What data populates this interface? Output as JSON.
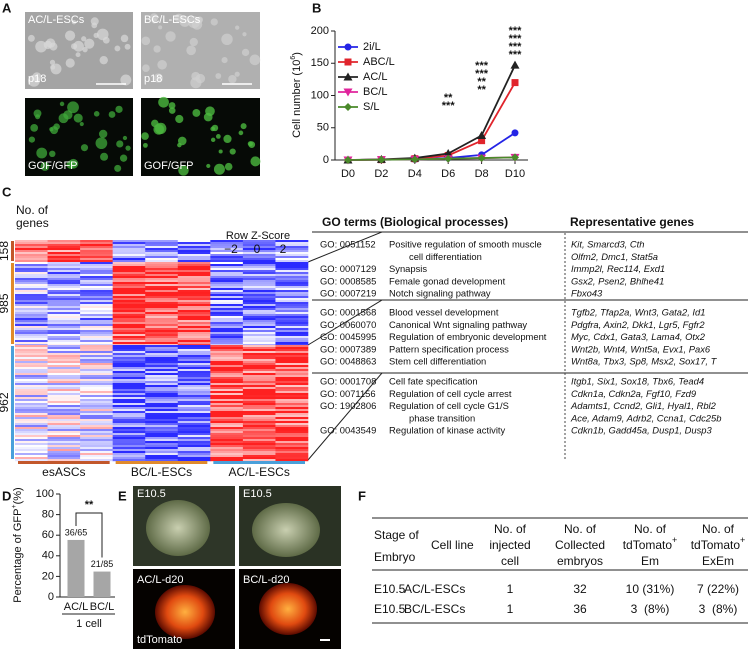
{
  "panel_labels": [
    "A",
    "B",
    "C",
    "D",
    "E",
    "F"
  ],
  "panel_a": {
    "labels": [
      "AC/L-ESCs",
      "BC/L-ESCs",
      "p18",
      "p18",
      "GOF/GFP",
      "GOF/GFP"
    ]
  },
  "chart_data": [
    {
      "type": "line",
      "ylabel": "Cell number (10",
      "ylabel_sup": "6",
      "ylabel_end": ")",
      "categories": [
        "D0",
        "D2",
        "D4",
        "D6",
        "D8",
        "D10"
      ],
      "ylim": [
        0,
        200
      ],
      "yticks": [
        0,
        50,
        100,
        150,
        200
      ],
      "series": [
        {
          "name": "2i/L",
          "color": "#2424e6",
          "marker": "circle",
          "values": [
            0,
            0.5,
            1,
            3,
            8,
            42
          ],
          "significance": [
            null,
            null,
            null,
            null,
            null,
            null
          ]
        },
        {
          "name": "ABC/L",
          "color": "#e0242c",
          "marker": "square",
          "values": [
            0,
            0.5,
            2,
            7,
            30,
            120
          ],
          "significance": [
            null,
            null,
            null,
            "**",
            "***",
            "***"
          ]
        },
        {
          "name": "AC/L",
          "color": "#222222",
          "marker": "triangle",
          "values": [
            0,
            1,
            3,
            10,
            38,
            147
          ],
          "significance": [
            null,
            null,
            null,
            "***",
            "***",
            "***"
          ]
        },
        {
          "name": "BC/L",
          "color": "#e0249c",
          "marker": "triangle-down",
          "values": [
            0,
            0.5,
            1,
            2,
            3,
            4
          ],
          "significance": [
            null,
            null,
            null,
            null,
            "**",
            "***"
          ]
        },
        {
          "name": "S/L",
          "color": "#4a8a2a",
          "marker": "diamond",
          "values": [
            0,
            0.5,
            1,
            2,
            3,
            4
          ],
          "significance": [
            null,
            null,
            null,
            null,
            "**",
            "***"
          ]
        }
      ]
    },
    {
      "type": "bar",
      "ylabel": "Percentage of GFP",
      "ylabel_sup": "+",
      "ylabel_end": "(%)",
      "categories": [
        "AC/L",
        "BC/L"
      ],
      "values": [
        55.4,
        24.7
      ],
      "value_labels": [
        "36/65",
        "21/85"
      ],
      "color": "#a6a6a6",
      "ylim": [
        0,
        100
      ],
      "yticks": [
        0,
        20,
        40,
        60,
        80,
        100
      ],
      "group_label": "1 cell",
      "significance": "**"
    }
  ],
  "panel_c": {
    "heatmap": {
      "gene_label": [
        "No. of",
        "genes"
      ],
      "clusters": [
        "158",
        "985",
        "962"
      ],
      "key_title": "Row Z-Score",
      "key_ticks": [
        "−2",
        "0",
        "2"
      ],
      "samples": [
        "esASCs",
        "BC/L-ESCs",
        "AC/L-ESCs"
      ]
    },
    "go_table": {
      "headers": [
        "GO terms (Biological processes)",
        "Representative genes"
      ],
      "groups": [
        [
          {
            "id": "GO: 0051152",
            "term": [
              "Positive regulation of smooth muscle",
              "cell differentiation"
            ],
            "genes": [
              "Kit, Smarcd3, Cth",
              "Olfm2, Dmc1, Stat5a"
            ]
          },
          {
            "id": "GO: 0007129",
            "term": [
              "Synapsis"
            ],
            "genes": [
              "Immp2l, Rec114, Exd1"
            ]
          },
          {
            "id": "GO: 0008585",
            "term": [
              "Female gonad development"
            ],
            "genes": [
              "Gsx2, Psen2, Bhlhe41"
            ]
          },
          {
            "id": "GO: 0007219",
            "term": [
              "Notch signaling pathway"
            ],
            "genes": [
              "Fbxo43"
            ]
          }
        ],
        [
          {
            "id": "GO: 0001568",
            "term": [
              "Blood vessel development"
            ],
            "genes": [
              "Tgfb2, Tfap2a, Wnt3, Gata2, Id1"
            ]
          },
          {
            "id": "GO: 0060070",
            "term": [
              "Canonical Wnt signaling pathway"
            ],
            "genes": [
              "Pdgfra, Axin2, Dkk1, Lgr5, Fgfr2"
            ]
          },
          {
            "id": "GO: 0045995",
            "term": [
              "Regulation of embryonic development"
            ],
            "genes": [
              "Myc, Cdx1, Gata3, Lama4, Otx2"
            ]
          },
          {
            "id": "GO: 0007389",
            "term": [
              "Pattern specification process"
            ],
            "genes": [
              "Wnt2b, Wnt4, Wnt5a, Evx1, Pax6"
            ]
          },
          {
            "id": "GO: 0048863",
            "term": [
              "Stem cell differentiation"
            ],
            "genes": [
              "Wnt8a, Tbx3, Sp8, Msx2, Sox17, T"
            ]
          }
        ],
        [
          {
            "id": "GO: 0001708",
            "term": [
              "Cell fate specification"
            ],
            "genes": [
              "Itgb1, Six1, Sox18, Tbx6, Tead4"
            ]
          },
          {
            "id": "GO: 0071156",
            "term": [
              "Regulation of cell cycle arrest"
            ],
            "genes": [
              "Cdkn1a, Cdkn2a, Fgf10, Fzd9"
            ]
          },
          {
            "id": "GO: 1902806",
            "term": [
              "Regulation of cell cycle G1/S",
              "phase transition"
            ],
            "genes": [
              "Adamts1, Ccnd2, Gli1, Hyal1, Rbl2",
              "Ace, Adam9, Adrb2, Ccna1, Cdc25b"
            ]
          },
          {
            "id": "GO: 0043549",
            "term": [
              "Regulation of kinase activity"
            ],
            "genes": [
              "Cdkn1b, Gadd45a, Dusp1, Dusp3"
            ]
          }
        ]
      ]
    }
  },
  "panel_e": {
    "labels": [
      "E10.5",
      "E10.5",
      "AC/L-d20",
      "BC/L-d20",
      "tdTomato"
    ]
  },
  "panel_f": {
    "table": {
      "header": [
        [
          "Stage of",
          "Embryo"
        ],
        [
          "Cell line"
        ],
        [
          "No. of",
          "injected",
          "cell"
        ],
        [
          "No. of",
          "Collected",
          "embryos"
        ],
        [
          "No. of",
          [
            "tdTomato",
            "+"
          ],
          "Em"
        ],
        [
          "No. of",
          [
            "tdTomato",
            "+"
          ],
          "ExEm"
        ]
      ],
      "rows": [
        [
          "E10.5",
          "AC/L-ESCs",
          "1",
          "32",
          "10 (31%)",
          "7 (22%)"
        ],
        [
          "E10.5",
          "BC/L-ESCs",
          "1",
          "36",
          "3  (8%)",
          "3  (8%)"
        ]
      ]
    }
  }
}
